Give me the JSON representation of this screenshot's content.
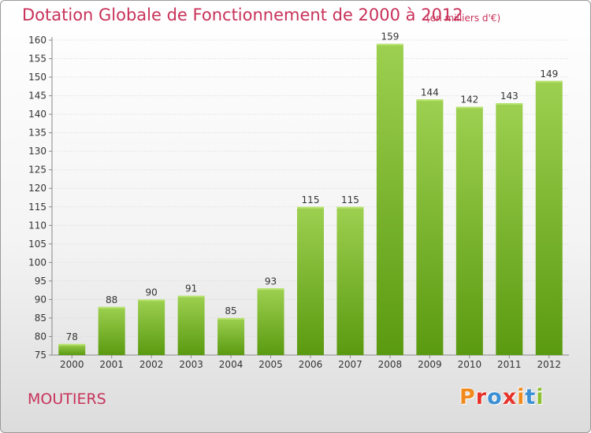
{
  "header": {
    "title": "Dotation Globale de Fonctionnement de 2000 à 2012",
    "unit": "(en milliers d'€)"
  },
  "footer": {
    "commune": "MOUTIERS",
    "logo_text": "Proxiti",
    "logo_colors": [
      "#f08a1c",
      "#e6332a",
      "#3b8fd4",
      "#e6332a",
      "#f08a1c",
      "#3b8fd4",
      "#8dbf2e"
    ]
  },
  "colors": {
    "title": "#c8325a",
    "bar_top": "#9dd050",
    "bar_bottom": "#5a9a10",
    "grid": "#d8d8d8"
  },
  "chart_data": {
    "type": "bar",
    "title": "Dotation Globale de Fonctionnement de 2000 à 2012",
    "subtitle": "(en milliers d'€)",
    "xlabel": "",
    "ylabel": "",
    "categories": [
      "2000",
      "2001",
      "2002",
      "2003",
      "2004",
      "2005",
      "2006",
      "2007",
      "2008",
      "2009",
      "2010",
      "2011",
      "2012"
    ],
    "values": [
      78,
      88,
      90,
      91,
      85,
      93,
      115,
      115,
      159,
      144,
      142,
      143,
      149
    ],
    "ylim": [
      75,
      160
    ],
    "yticks": [
      75,
      80,
      85,
      90,
      95,
      100,
      105,
      110,
      115,
      120,
      125,
      130,
      135,
      140,
      145,
      150,
      155,
      160
    ],
    "grid": true,
    "legend": "none"
  }
}
